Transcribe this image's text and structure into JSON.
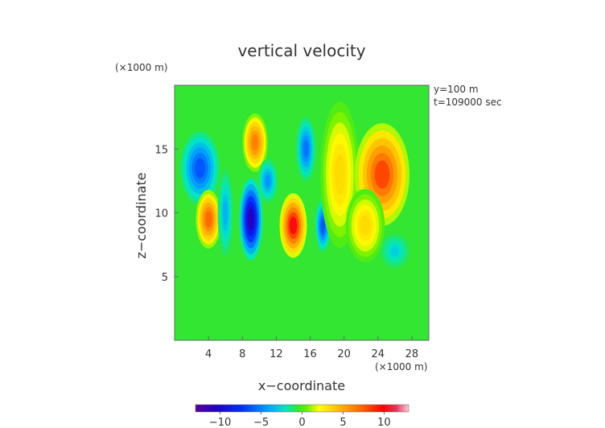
{
  "chart_data": {
    "type": "heatmap",
    "title": "vertical velocity",
    "xlabel": "x−coordinate",
    "ylabel": "z−coordinate",
    "x_units": "(×1000 m)",
    "y_units": "(×1000 m)",
    "annotations": [
      "y=100 m",
      "t=109000 sec"
    ],
    "xlim": [
      0,
      30
    ],
    "ylim": [
      0,
      20
    ],
    "xticks": [
      4,
      8,
      12,
      16,
      20,
      24,
      28
    ],
    "yticks": [
      5,
      10,
      15
    ],
    "colorbar": {
      "range": [
        -13,
        13
      ],
      "ticks": [
        -10,
        -5,
        0,
        5,
        10
      ],
      "tick_labels": [
        "−10",
        "−5",
        "0",
        "5",
        "10"
      ]
    },
    "cells": [
      {
        "x": 3,
        "z": 13.5,
        "value": -7,
        "sx": 2.0,
        "sz": 2.5
      },
      {
        "x": 4,
        "z": 9.5,
        "value": 9,
        "sx": 1.3,
        "sz": 2.0
      },
      {
        "x": 6,
        "z": 10,
        "value": -4,
        "sx": 0.8,
        "sz": 3.0
      },
      {
        "x": 9,
        "z": 9.5,
        "value": -12,
        "sx": 1.2,
        "sz": 2.8
      },
      {
        "x": 9.5,
        "z": 15.5,
        "value": 8,
        "sx": 1.3,
        "sz": 2.0
      },
      {
        "x": 11,
        "z": 12.5,
        "value": -5,
        "sx": 1.0,
        "sz": 1.5
      },
      {
        "x": 14,
        "z": 9,
        "value": 12,
        "sx": 1.4,
        "sz": 2.2
      },
      {
        "x": 15.5,
        "z": 15,
        "value": -6,
        "sx": 1.0,
        "sz": 2.2
      },
      {
        "x": 17.5,
        "z": 9,
        "value": -7,
        "sx": 0.8,
        "sz": 1.8
      },
      {
        "x": 19.5,
        "z": 13,
        "value": 4,
        "sx": 2.0,
        "sz": 5.0
      },
      {
        "x": 24.5,
        "z": 13,
        "value": 10,
        "sx": 2.8,
        "sz": 3.5
      },
      {
        "x": 22.5,
        "z": 9,
        "value": 4,
        "sx": 2.0,
        "sz": 2.5
      },
      {
        "x": 26,
        "z": 7,
        "value": -3,
        "sx": 1.5,
        "sz": 1.2
      }
    ]
  }
}
